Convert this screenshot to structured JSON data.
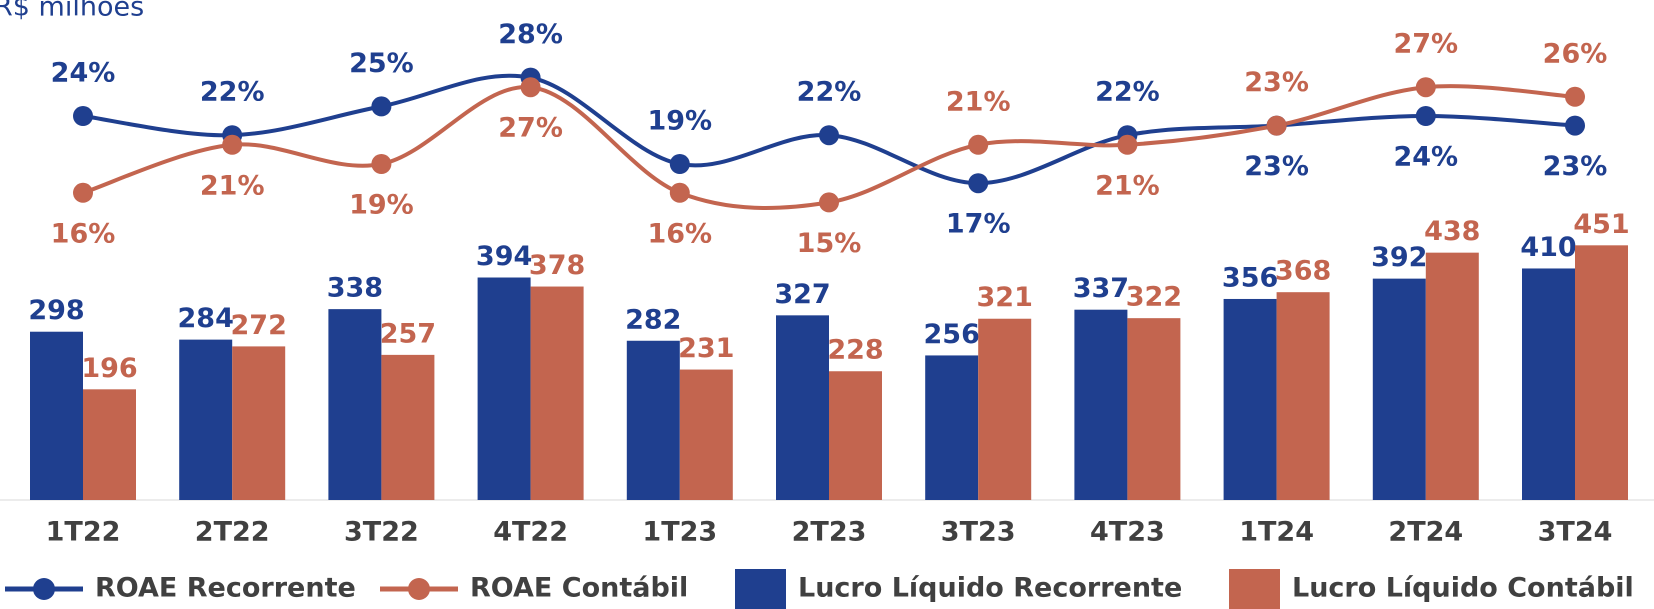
{
  "chart_data": {
    "type": "bar_line",
    "title": "R$ milhões",
    "categories": [
      "1T22",
      "2T22",
      "3T22",
      "4T22",
      "1T23",
      "2T23",
      "3T23",
      "4T23",
      "1T24",
      "2T24",
      "3T24"
    ],
    "ylim": [
      0,
      850
    ],
    "y2lim": [
      -16,
      34
    ],
    "series": [
      {
        "name": "ROAE Recorrente",
        "type": "line",
        "axis": "y2",
        "color": "#1f3f8f",
        "values": [
          24,
          22,
          25,
          28,
          19,
          22,
          17,
          22,
          23,
          24,
          23
        ],
        "value_labels": [
          "24%",
          "22%",
          "25%",
          "28%",
          "19%",
          "22%",
          "17%",
          "22%",
          "23%",
          "24%",
          "23%"
        ]
      },
      {
        "name": "ROAE Contábil",
        "type": "line",
        "axis": "y2",
        "color": "#c3654f",
        "values": [
          16,
          21,
          19,
          27,
          16,
          15,
          21,
          21,
          23,
          27,
          26
        ],
        "value_labels": [
          "16%",
          "21%",
          "19%",
          "27%",
          "16%",
          "15%",
          "21%",
          "21%",
          "23%",
          "27%",
          "26%"
        ]
      },
      {
        "name": "Lucro Líquido Recorrente",
        "type": "bar",
        "color": "#1f3f8f",
        "values": [
          298,
          284,
          338,
          394,
          282,
          327,
          256,
          337,
          356,
          392,
          410
        ]
      },
      {
        "name": "Lucro Líquido Contábil",
        "type": "bar",
        "color": "#c3654f",
        "values": [
          196,
          272,
          257,
          378,
          231,
          228,
          321,
          322,
          368,
          438,
          451
        ]
      }
    ]
  }
}
